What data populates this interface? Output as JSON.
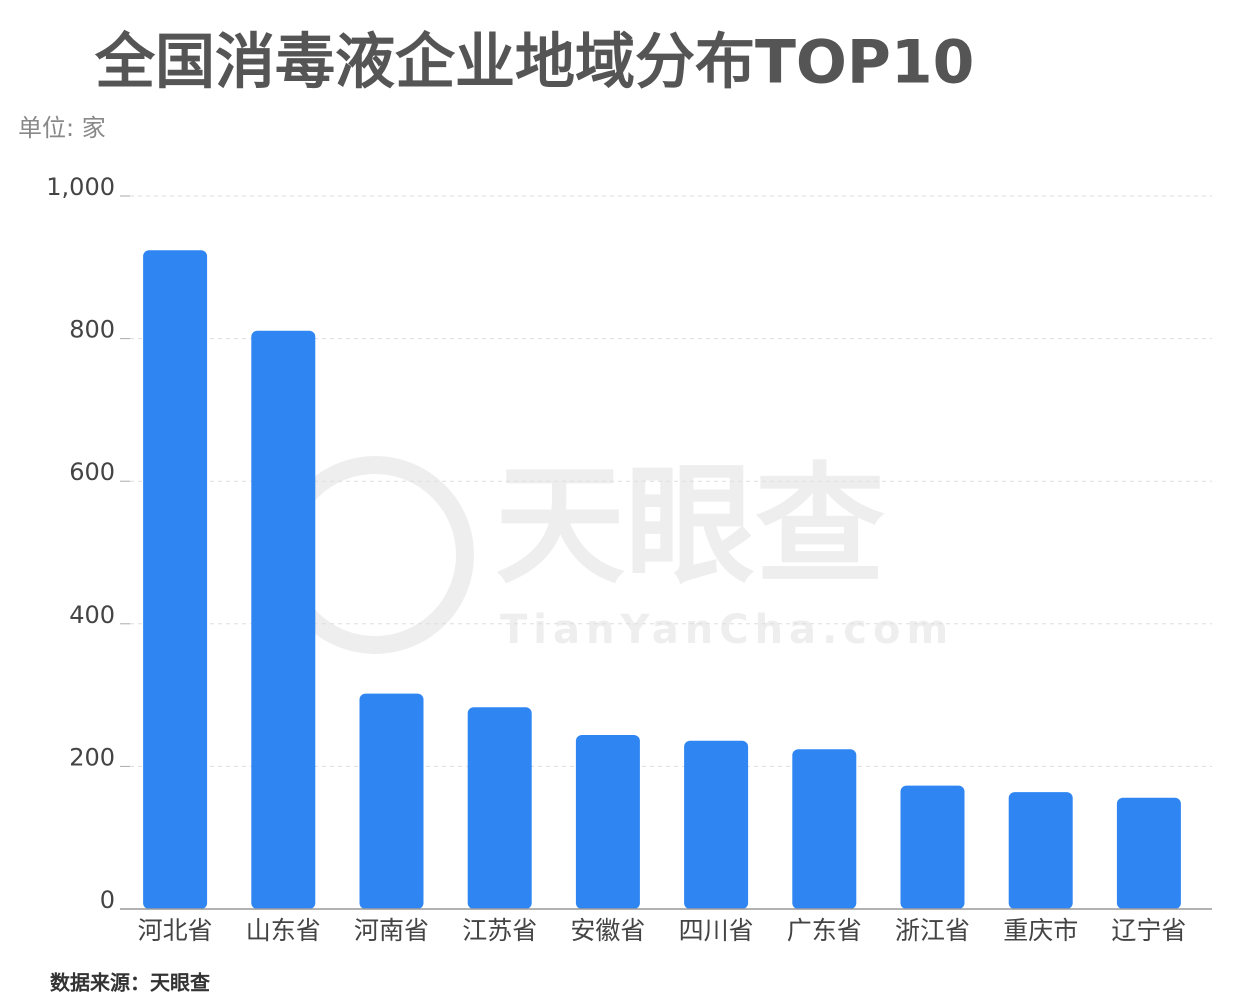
{
  "chart_data": {
    "type": "bar",
    "title": "全国消毒液企业地域分布TOP10",
    "unit_label": "单位: 家",
    "source": "数据来源：天眼查",
    "watermark": {
      "name": "天眼查",
      "url": "TianYanCha.com"
    },
    "categories": [
      "河北省",
      "山东省",
      "河南省",
      "江苏省",
      "安徽省",
      "四川省",
      "广东省",
      "浙江省",
      "重庆市",
      "辽宁省"
    ],
    "values": [
      924,
      811,
      302,
      283,
      244,
      236,
      224,
      173,
      164,
      156
    ],
    "color": "#2f86f3",
    "ylim": [
      0,
      1000
    ],
    "yticks": [
      0,
      200,
      400,
      600,
      800,
      {
        "value": 1000,
        "label": "1,000"
      }
    ],
    "grid": true
  }
}
